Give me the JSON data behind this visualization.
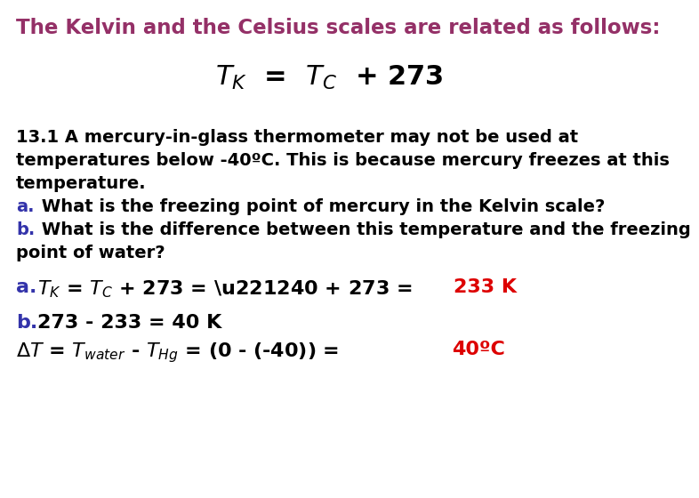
{
  "background_color": "#ffffff",
  "title_text": "The Kelvin and the Celsius scales are related as follows:",
  "title_color": "#943067",
  "title_fontsize": 16.5,
  "formula_color": "#000000",
  "formula_fontsize": 22,
  "body_color": "#000000",
  "body_fontsize": 14,
  "highlight_blue": "#3333aa",
  "highlight_red": "#dd0000",
  "ans_fontsize": 16,
  "line1": "13.1 A mercury-in-glass thermometer may not be used at",
  "line2": "temperatures below -40ºC. This is because mercury freezes at this",
  "line3": "temperature.",
  "line4b": " What is the freezing point of mercury in the Kelvin scale?",
  "line5b": " What is the difference between this temperature and the freezing",
  "line6": "point of water?"
}
